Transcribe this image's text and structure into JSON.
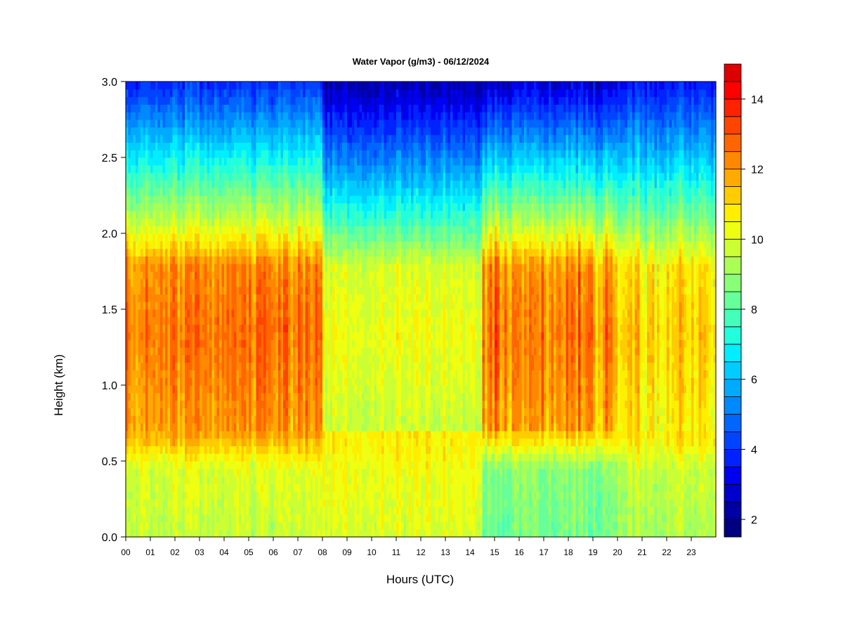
{
  "chart_data": {
    "type": "heatmap",
    "title": "Water Vapor (g/m3) - 06/12/2024",
    "xlabel": "Hours (UTC)",
    "ylabel": "Height (km)",
    "xlim": [
      0,
      24
    ],
    "ylim": [
      0.0,
      3.0
    ],
    "x_ticks": [
      "00",
      "01",
      "02",
      "03",
      "04",
      "05",
      "06",
      "07",
      "08",
      "09",
      "10",
      "11",
      "12",
      "13",
      "14",
      "15",
      "16",
      "17",
      "18",
      "19",
      "20",
      "21",
      "22",
      "23"
    ],
    "y_ticks": [
      "0.0",
      "0.5",
      "1.0",
      "1.5",
      "2.0",
      "2.5",
      "3.0"
    ],
    "colorbar": {
      "min": 1.5,
      "max": 14.5,
      "step": 0.5,
      "tick_labels": [
        "2",
        "4",
        "6",
        "8",
        "10",
        "12",
        "14"
      ],
      "colors": [
        "#000080",
        "#0000A5",
        "#0000CC",
        "#0000F0",
        "#0022FF",
        "#0044FF",
        "#0066FF",
        "#0088FF",
        "#00AAFF",
        "#00CCFF",
        "#00EEFF",
        "#22FFDD",
        "#44FFBB",
        "#66FF99",
        "#88FF77",
        "#AAFF55",
        "#CCFF33",
        "#EEFF11",
        "#FFEE00",
        "#FFCC00",
        "#FFAA00",
        "#FF8800",
        "#FF6600",
        "#FF4400",
        "#FF2200",
        "#FF0000",
        "#DD0000"
      ]
    },
    "grid": false,
    "time_periods": [
      {
        "hours": "00-08",
        "pattern": "moist layer 0.7-2.0 km, peak ~12-13 g/m3 near 1.2-1.7 km; surface ~9-10; 3 km ~3-4"
      },
      {
        "hours": "08-14.5",
        "pattern": "weaker layer ~10-11 g/m3 below 1.7 km; 3 km ~2-3"
      },
      {
        "hours": "14.5-20",
        "pattern": "strong bands ~12-13 g/m3 at 0.9-1.8 km; surface ~8-9; 3 km ~2-4"
      },
      {
        "hours": "20-24",
        "pattern": "layer ~10-12 g/m3 at 0.6-1.7 km; surface ~8-10; 3 km ~3-4"
      }
    ]
  }
}
